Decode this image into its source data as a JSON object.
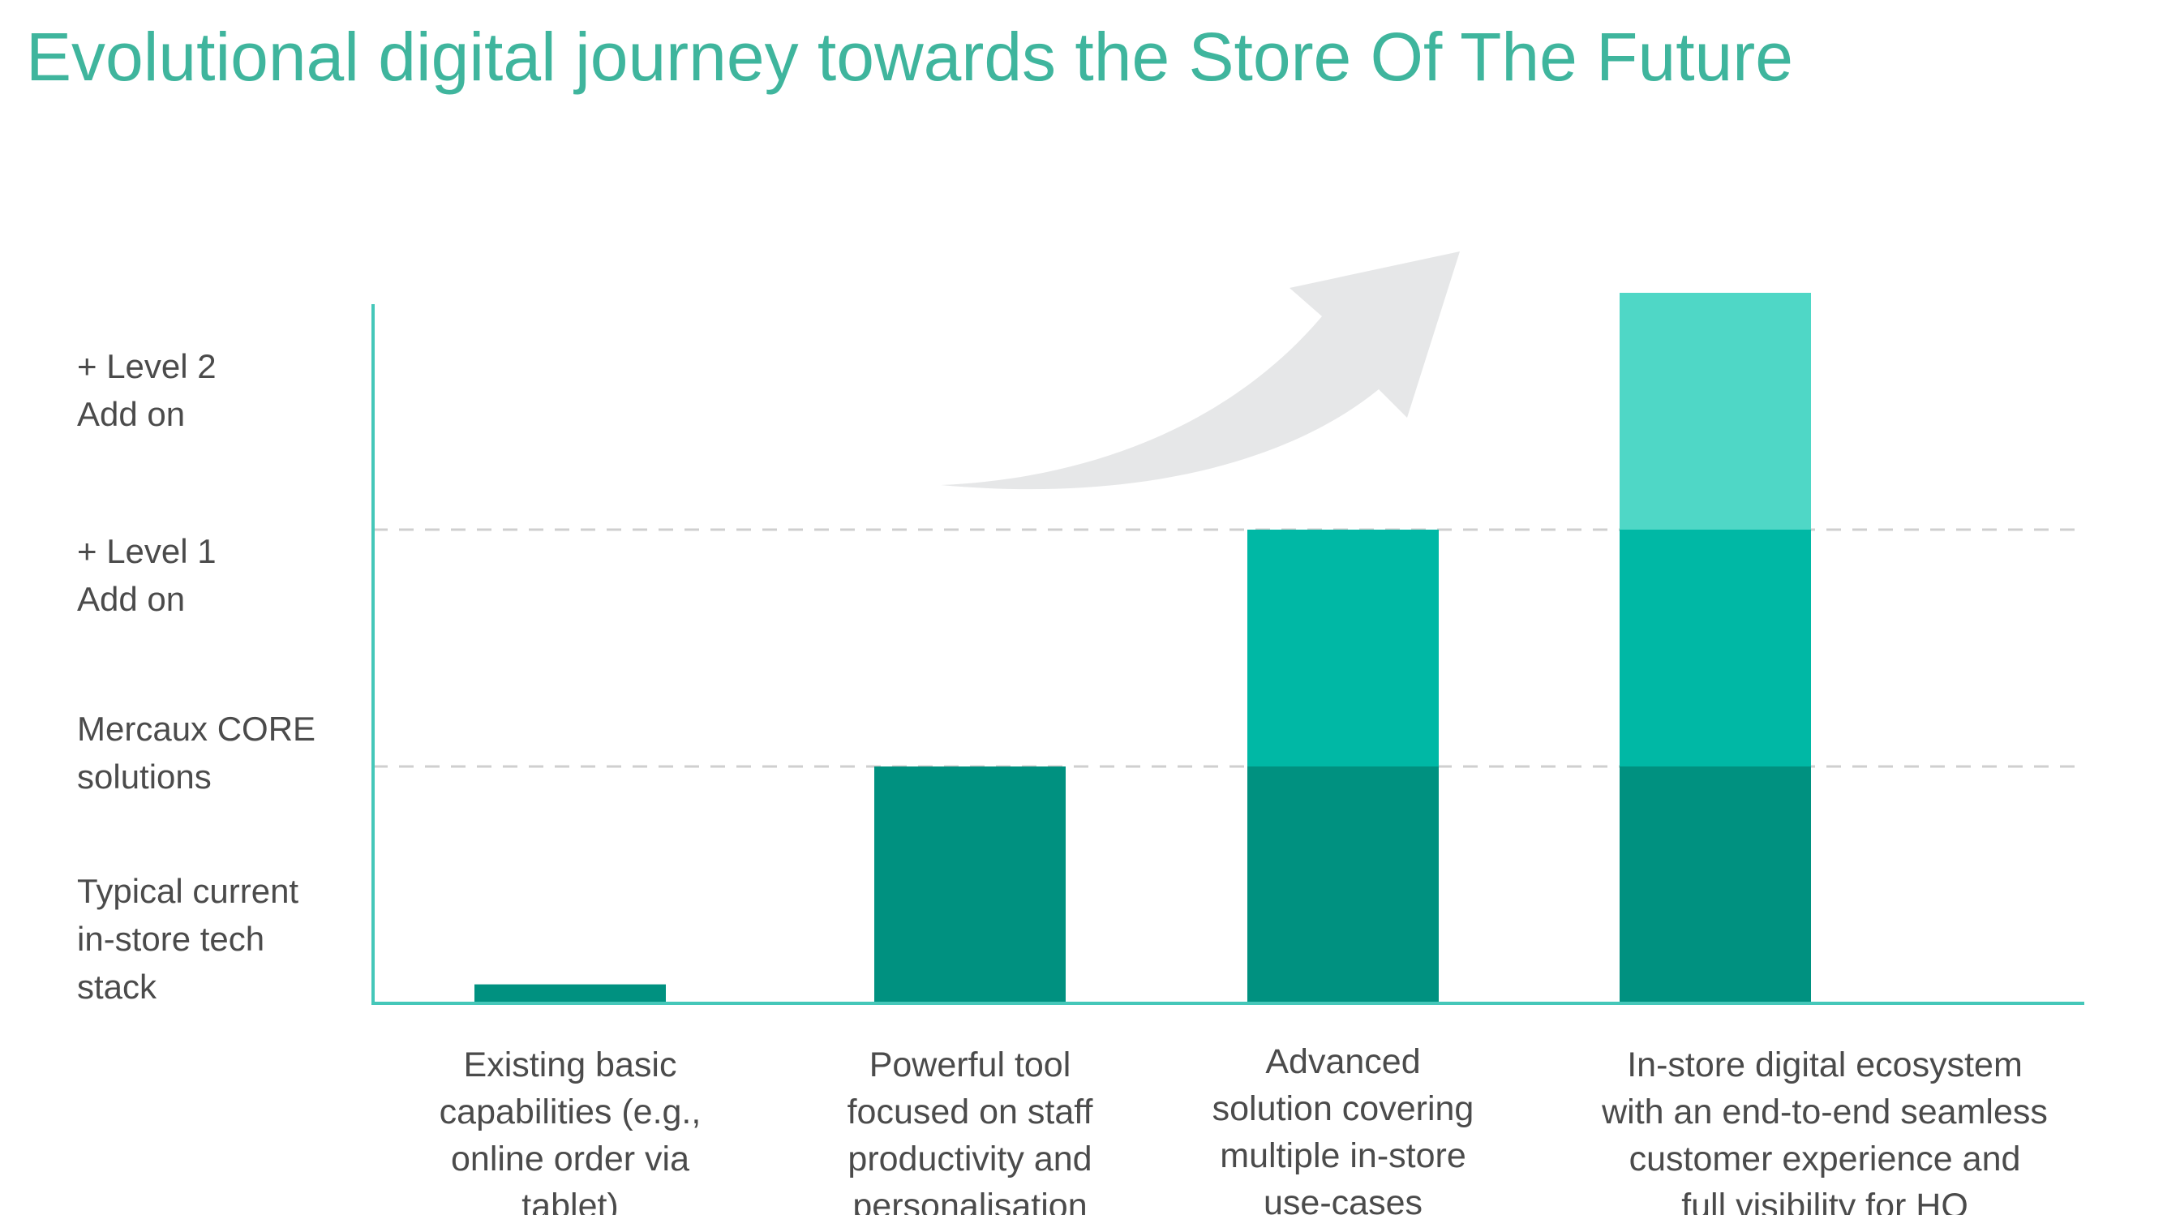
{
  "title": "Evolutional digital journey towards the Store Of The Future",
  "colors": {
    "title": "#3fb59d",
    "axis": "#45c7b9",
    "gridline": "#cfcfcf",
    "arrow": "#e6e7e8",
    "text": "#4b4b4b"
  },
  "chart_data": {
    "type": "bar",
    "stacked": true,
    "title": "Evolutional digital journey towards the Store Of The Future",
    "y_levels": [
      {
        "lines": [
          "Typical current",
          "in-store tech",
          "stack"
        ]
      },
      {
        "lines": [
          "Mercaux CORE",
          "solutions"
        ]
      },
      {
        "lines": [
          "+ Level 1",
          "Add on"
        ]
      },
      {
        "lines": [
          "+ Level 2",
          "Add on"
        ]
      }
    ],
    "ylim": [
      0,
      3
    ],
    "grid": "dashed at level boundaries",
    "categories": [
      {
        "lines": [
          "Existing basic",
          "capabilities (e.g.,",
          "online order via",
          "tablet)"
        ]
      },
      {
        "lines": [
          "Powerful tool",
          "focused on staff",
          "productivity and",
          "personalisation"
        ]
      },
      {
        "lines": [
          "Advanced",
          "solution covering",
          "multiple in-store",
          "use-cases"
        ]
      },
      {
        "lines": [
          "In-store digital ecosystem",
          "with an end-to-end seamless",
          "customer experience and",
          "full visibility for HQ"
        ]
      }
    ],
    "series": [
      {
        "color": "#009180",
        "values": [
          0.08,
          1,
          1,
          1
        ]
      },
      {
        "color": "#00b8a5",
        "values": [
          0,
          0,
          1,
          1
        ]
      },
      {
        "color": "#4fd7c6",
        "values": [
          0,
          0,
          0,
          1
        ]
      }
    ],
    "annotation": "upward growth arrow"
  }
}
